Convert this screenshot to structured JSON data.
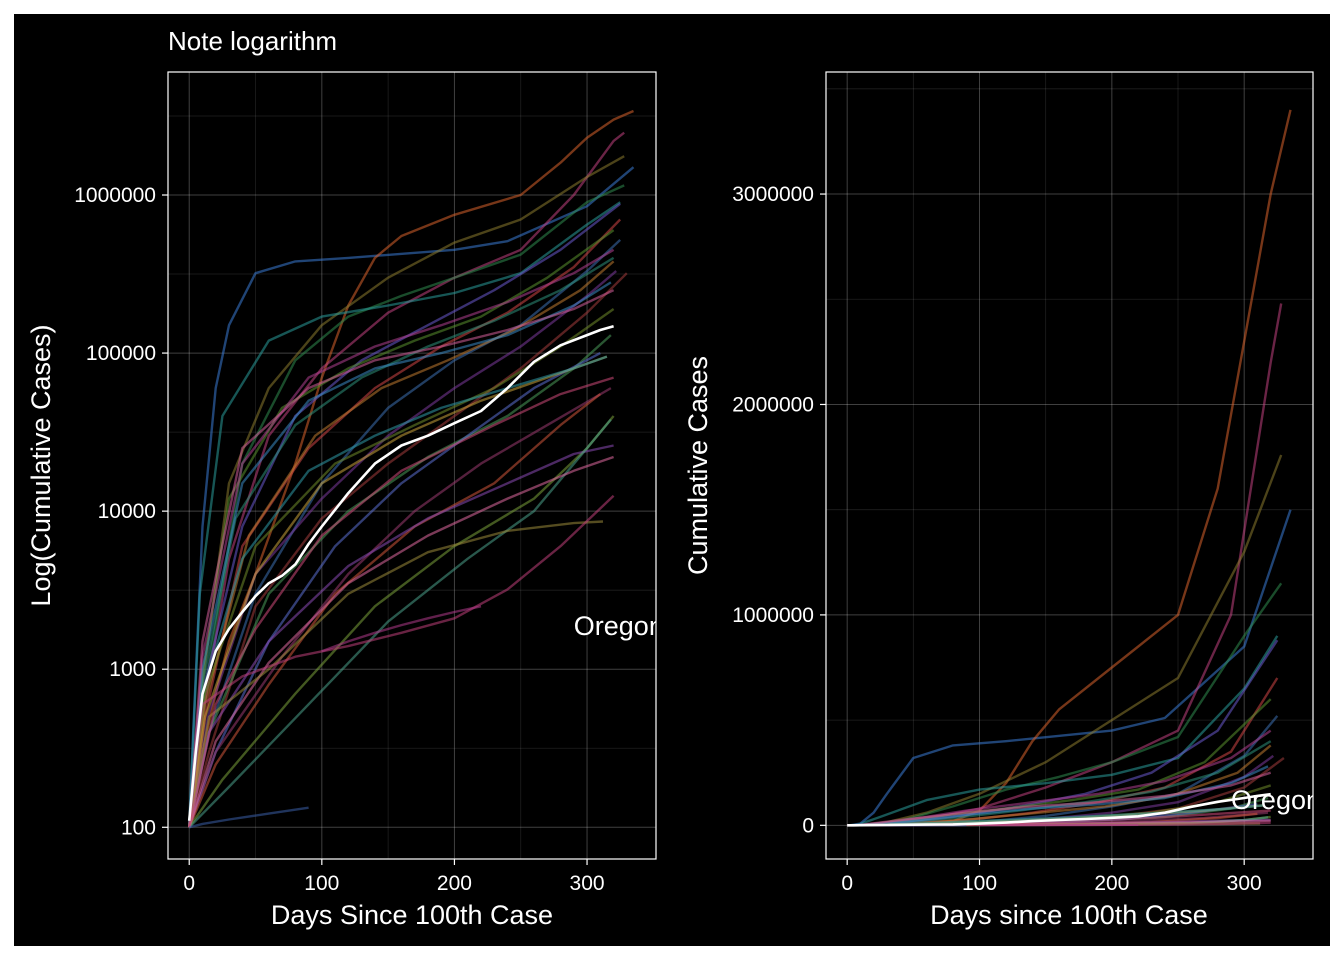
{
  "page": {
    "background": "#000000",
    "outer_border": "#ffffff"
  },
  "chart_data": [
    {
      "type": "line",
      "title": "Note logarithm",
      "xlabel": "Days Since 100th Case",
      "ylabel": "Log(Cumulative Cases)",
      "x_scale": "linear",
      "y_scale": "log10",
      "xlim": [
        -16,
        352
      ],
      "ylim": [
        63,
        6000000
      ],
      "x_ticks": [
        0,
        100,
        200,
        300
      ],
      "x_tick_labels": [
        "0",
        "100",
        "200",
        "300"
      ],
      "y_ticks": [
        100,
        1000,
        10000,
        100000,
        1000000
      ],
      "y_tick_labels": [
        "100",
        "1000",
        "10000",
        "100000",
        "1000000"
      ],
      "grid": true,
      "annotation": {
        "text": "Oregon",
        "x": 290,
        "y": 1900
      }
    },
    {
      "type": "line",
      "title": "",
      "xlabel": "Days since 100th Case",
      "ylabel": "Cumulative Cases",
      "x_scale": "linear",
      "y_scale": "linear",
      "xlim": [
        -16,
        352
      ],
      "ylim": [
        -160000,
        3580000
      ],
      "x_ticks": [
        0,
        100,
        200,
        300
      ],
      "x_tick_labels": [
        "0",
        "100",
        "200",
        "300"
      ],
      "y_ticks": [
        0,
        1000000,
        2000000,
        3000000
      ],
      "y_tick_labels": [
        "0",
        "1000000",
        "2000000",
        "3000000"
      ],
      "grid": true,
      "annotation": {
        "text": "Oregon",
        "x": 290,
        "y": 125000
      }
    }
  ],
  "series": {
    "highlight_name": "Oregon",
    "highlight_color": "#ffffff",
    "highlight": {
      "x": [
        0,
        5,
        10,
        20,
        30,
        40,
        50,
        60,
        70,
        80,
        90,
        100,
        120,
        140,
        160,
        180,
        200,
        220,
        240,
        260,
        280,
        300,
        310,
        320
      ],
      "y": [
        110,
        300,
        700,
        1300,
        1800,
        2300,
        2900,
        3500,
        3900,
        4600,
        6200,
        8000,
        13000,
        20000,
        26000,
        30000,
        36000,
        43000,
        60000,
        88000,
        112000,
        130000,
        140000,
        148000
      ]
    },
    "background": [
      {
        "color": "#3a7bd5",
        "x": [
          0,
          3,
          10,
          20,
          30,
          50,
          80,
          120,
          200,
          240,
          300,
          335
        ],
        "y": [
          100,
          400,
          8000,
          60000,
          150000,
          320000,
          380000,
          400000,
          450000,
          510000,
          850000,
          1500000
        ]
      },
      {
        "color": "#d9622b",
        "x": [
          0,
          10,
          20,
          30,
          50,
          80,
          100,
          120,
          140,
          160,
          200,
          250,
          280,
          300,
          320,
          335
        ],
        "y": [
          100,
          300,
          700,
          1500,
          4000,
          20000,
          70000,
          200000,
          400000,
          550000,
          750000,
          1000000,
          1600000,
          2300000,
          3000000,
          3400000
        ]
      },
      {
        "color": "#c1417f",
        "x": [
          0,
          10,
          30,
          60,
          100,
          150,
          200,
          250,
          290,
          320,
          328
        ],
        "y": [
          100,
          500,
          5000,
          30000,
          80000,
          180000,
          300000,
          450000,
          1000000,
          2200000,
          2480000
        ]
      },
      {
        "color": "#8a7a2e",
        "x": [
          0,
          10,
          30,
          60,
          100,
          150,
          200,
          250,
          300,
          328
        ],
        "y": [
          100,
          800,
          15000,
          60000,
          150000,
          300000,
          500000,
          700000,
          1300000,
          1760000
        ]
      },
      {
        "color": "#2f8b4e",
        "x": [
          0,
          10,
          40,
          80,
          120,
          160,
          200,
          250,
          300,
          328
        ],
        "y": [
          100,
          600,
          20000,
          90000,
          170000,
          230000,
          300000,
          420000,
          900000,
          1150000
        ]
      },
      {
        "color": "#2a9d9b",
        "x": [
          0,
          8,
          25,
          60,
          100,
          150,
          200,
          250,
          300,
          325
        ],
        "y": [
          100,
          3000,
          40000,
          120000,
          170000,
          200000,
          240000,
          320000,
          650000,
          900000
        ]
      },
      {
        "color": "#6a5acd",
        "x": [
          0,
          10,
          40,
          80,
          130,
          180,
          230,
          280,
          325
        ],
        "y": [
          100,
          700,
          8000,
          40000,
          90000,
          150000,
          250000,
          450000,
          880000
        ]
      },
      {
        "color": "#d04545",
        "x": [
          0,
          12,
          40,
          90,
          140,
          190,
          240,
          290,
          325
        ],
        "y": [
          100,
          500,
          6000,
          25000,
          60000,
          110000,
          180000,
          350000,
          700000
        ]
      },
      {
        "color": "#5a8f2e",
        "x": [
          0,
          10,
          30,
          70,
          120,
          170,
          220,
          270,
          320
        ],
        "y": [
          100,
          900,
          12000,
          45000,
          80000,
          120000,
          170000,
          300000,
          600000
        ]
      },
      {
        "color": "#3d6fb0",
        "x": [
          0,
          15,
          50,
          100,
          150,
          200,
          250,
          300,
          325
        ],
        "y": [
          100,
          400,
          3000,
          15000,
          45000,
          90000,
          150000,
          330000,
          520000
        ]
      },
      {
        "color": "#b0408f",
        "x": [
          0,
          10,
          40,
          90,
          140,
          190,
          240,
          290,
          320
        ],
        "y": [
          100,
          1200,
          20000,
          70000,
          110000,
          150000,
          210000,
          320000,
          450000
        ]
      },
      {
        "color": "#c07a30",
        "x": [
          0,
          12,
          45,
          95,
          145,
          195,
          245,
          295,
          320
        ],
        "y": [
          100,
          600,
          7000,
          30000,
          60000,
          90000,
          140000,
          250000,
          380000
        ]
      },
      {
        "color": "#2e8f7a",
        "x": [
          0,
          10,
          35,
          80,
          130,
          180,
          230,
          280,
          320
        ],
        "y": [
          100,
          800,
          9000,
          35000,
          70000,
          110000,
          160000,
          250000,
          400000
        ]
      },
      {
        "color": "#7c3a9d",
        "x": [
          0,
          14,
          50,
          100,
          150,
          200,
          250,
          300,
          322
        ],
        "y": [
          100,
          500,
          4000,
          12000,
          30000,
          60000,
          110000,
          230000,
          330000
        ]
      },
      {
        "color": "#3b8ac4",
        "x": [
          0,
          10,
          40,
          90,
          140,
          190,
          240,
          290,
          318
        ],
        "y": [
          100,
          1000,
          15000,
          50000,
          80000,
          100000,
          130000,
          200000,
          280000
        ]
      },
      {
        "color": "#a33c3c",
        "x": [
          0,
          15,
          50,
          100,
          150,
          200,
          250,
          300,
          330
        ],
        "y": [
          100,
          300,
          2500,
          9000,
          20000,
          40000,
          80000,
          180000,
          320000
        ]
      },
      {
        "color": "#6f8a2a",
        "x": [
          0,
          12,
          50,
          110,
          170,
          230,
          280,
          320
        ],
        "y": [
          100,
          700,
          6000,
          20000,
          35000,
          60000,
          110000,
          190000
        ]
      },
      {
        "color": "#d35f9a",
        "x": [
          0,
          10,
          40,
          90,
          140,
          190,
          240,
          290,
          320
        ],
        "y": [
          100,
          1500,
          25000,
          60000,
          90000,
          110000,
          140000,
          190000,
          250000
        ]
      },
      {
        "color": "#4a9a5a",
        "x": [
          0,
          15,
          60,
          120,
          180,
          240,
          290,
          318
        ],
        "y": [
          100,
          400,
          3000,
          10000,
          22000,
          40000,
          80000,
          130000
        ]
      },
      {
        "color": "#5b6fd1",
        "x": [
          0,
          20,
          60,
          110,
          160,
          210,
          260,
          310
        ],
        "y": [
          100,
          300,
          1500,
          6000,
          15000,
          30000,
          60000,
          100000
        ]
      },
      {
        "color": "#c9a23a",
        "x": [
          0,
          12,
          50,
          100,
          160,
          220,
          270,
          315
        ],
        "y": [
          100,
          500,
          4000,
          15000,
          30000,
          50000,
          70000,
          95000
        ]
      },
      {
        "color": "#9b3a6f",
        "x": [
          0,
          20,
          70,
          120,
          170,
          220,
          270,
          318
        ],
        "y": [
          100,
          300,
          1200,
          4000,
          10000,
          20000,
          35000,
          60000
        ]
      },
      {
        "color": "#2f9aa8",
        "x": [
          0,
          10,
          40,
          90,
          140,
          190,
          240,
          290,
          315
        ],
        "y": [
          100,
          700,
          5000,
          18000,
          30000,
          45000,
          60000,
          80000,
          95000
        ]
      },
      {
        "color": "#d0553a",
        "x": [
          0,
          20,
          60,
          110,
          170,
          230,
          280,
          310
        ],
        "y": [
          100,
          250,
          800,
          3000,
          8000,
          15000,
          35000,
          55000
        ]
      },
      {
        "color": "#7aa03a",
        "x": [
          0,
          25,
          80,
          140,
          200,
          260,
          300,
          320
        ],
        "y": [
          100,
          200,
          700,
          2500,
          6000,
          12000,
          25000,
          40000
        ]
      },
      {
        "color": "#8a4ab5",
        "x": [
          0,
          15,
          60,
          120,
          180,
          240,
          290,
          320
        ],
        "y": [
          100,
          400,
          1500,
          4500,
          9000,
          15000,
          23000,
          26000
        ]
      },
      {
        "color": "#4aa08a",
        "x": [
          0,
          30,
          90,
          150,
          210,
          260,
          300,
          318
        ],
        "y": [
          100,
          180,
          600,
          2000,
          5000,
          10000,
          25000,
          38000
        ]
      },
      {
        "color": "#e06aa0",
        "x": [
          0,
          20,
          60,
          120,
          180,
          240,
          290,
          320
        ],
        "y": [
          100,
          350,
          1100,
          3500,
          7000,
          12000,
          18000,
          22000
        ]
      },
      {
        "color": "#9a8a3a",
        "x": [
          0,
          15,
          60,
          120,
          180,
          240,
          290,
          312
        ],
        "y": [
          100,
          500,
          1000,
          3000,
          5500,
          7500,
          8400,
          8600
        ]
      },
      {
        "color": "#c0407a",
        "x": [
          0,
          10,
          40,
          80,
          120,
          160,
          200,
          240,
          280,
          320
        ],
        "y": [
          100,
          600,
          900,
          1200,
          1400,
          1700,
          2100,
          3200,
          6000,
          12500
        ]
      },
      {
        "color": "#b03a8a",
        "x": [
          100,
          120,
          140,
          160,
          180,
          200,
          220
        ],
        "y": [
          1300,
          1500,
          1700,
          1900,
          2100,
          2300,
          2500
        ]
      },
      {
        "color": "#d04a7a",
        "x": [
          0,
          20,
          50,
          100,
          160,
          230,
          280,
          320
        ],
        "y": [
          100,
          600,
          1800,
          7000,
          18000,
          35000,
          55000,
          70000
        ]
      },
      {
        "color": "#3a5fa8",
        "x": [
          0,
          10,
          30,
          60,
          90
        ],
        "y": [
          100,
          105,
          112,
          122,
          133
        ]
      }
    ]
  }
}
